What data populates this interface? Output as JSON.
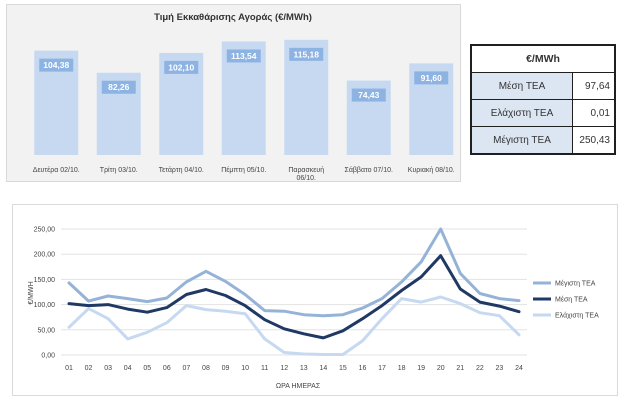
{
  "chart_data": [
    {
      "type": "bar",
      "title": "Τιμή Εκκαθάρισης Αγοράς (€/MWh)",
      "categories": [
        "Δευτέρα 02/10.",
        "Τρίτη 03/10.",
        "Τετάρτη 04/10.",
        "Πέμπτη 05/10.",
        "Παρασκευή 06/10.",
        "Σάββατο 07/10.",
        "Κυριακή 08/10."
      ],
      "values": [
        104.38,
        82.26,
        102.1,
        113.54,
        115.18,
        74.43,
        91.6
      ],
      "value_labels": [
        "104,38",
        "82,26",
        "102,10",
        "113,54",
        "115,18",
        "74,43",
        "91,60"
      ],
      "ylim": [
        0,
        130
      ],
      "color": "#c6d9f1",
      "label_color": "#8db3e2"
    },
    {
      "type": "line",
      "xlabel": "ΩΡΑ ΗΜΕΡΑΣ",
      "ylabel": "€/MWH",
      "x": [
        "01",
        "02",
        "03",
        "04",
        "05",
        "06",
        "07",
        "08",
        "09",
        "10",
        "11",
        "12",
        "13",
        "14",
        "15",
        "16",
        "17",
        "18",
        "19",
        "20",
        "21",
        "22",
        "23",
        "24"
      ],
      "ylim": [
        0,
        250
      ],
      "yticks": [
        0,
        50,
        100,
        150,
        200,
        250
      ],
      "ytick_labels": [
        "0,00",
        "50,00",
        "100,00",
        "150,00",
        "200,00",
        "250,00"
      ],
      "grid": true,
      "legend_position": "right",
      "series": [
        {
          "name": "Μέγιστη ΤΕΑ",
          "color": "#95b3d7",
          "values": [
            143,
            107,
            117,
            112,
            106,
            113,
            145,
            166,
            146,
            120,
            88,
            87,
            80,
            78,
            80,
            93,
            112,
            145,
            185,
            250,
            162,
            122,
            112,
            108
          ]
        },
        {
          "name": "Μέση ΤΕΑ",
          "color": "#1f3864",
          "values": [
            102,
            98,
            100,
            91,
            85,
            94,
            120,
            130,
            118,
            98,
            70,
            52,
            42,
            34,
            48,
            72,
            98,
            128,
            155,
            197,
            131,
            105,
            97,
            86
          ]
        },
        {
          "name": "Ελάχιστη ΤΕΑ",
          "color": "#c6d9f1",
          "values": [
            55,
            92,
            72,
            32,
            45,
            64,
            98,
            90,
            87,
            82,
            32,
            5,
            2,
            1,
            1,
            28,
            72,
            112,
            105,
            115,
            102,
            84,
            78,
            40
          ]
        }
      ]
    }
  ],
  "stats_table": {
    "header": "€/MWh",
    "rows": [
      {
        "label": "Μέση ΤΕΑ",
        "value": "97,64"
      },
      {
        "label": "Ελάχιστη ΤΕΑ",
        "value": "0,01"
      },
      {
        "label": "Μέγιστη ΤΕΑ",
        "value": "250,43"
      }
    ]
  }
}
